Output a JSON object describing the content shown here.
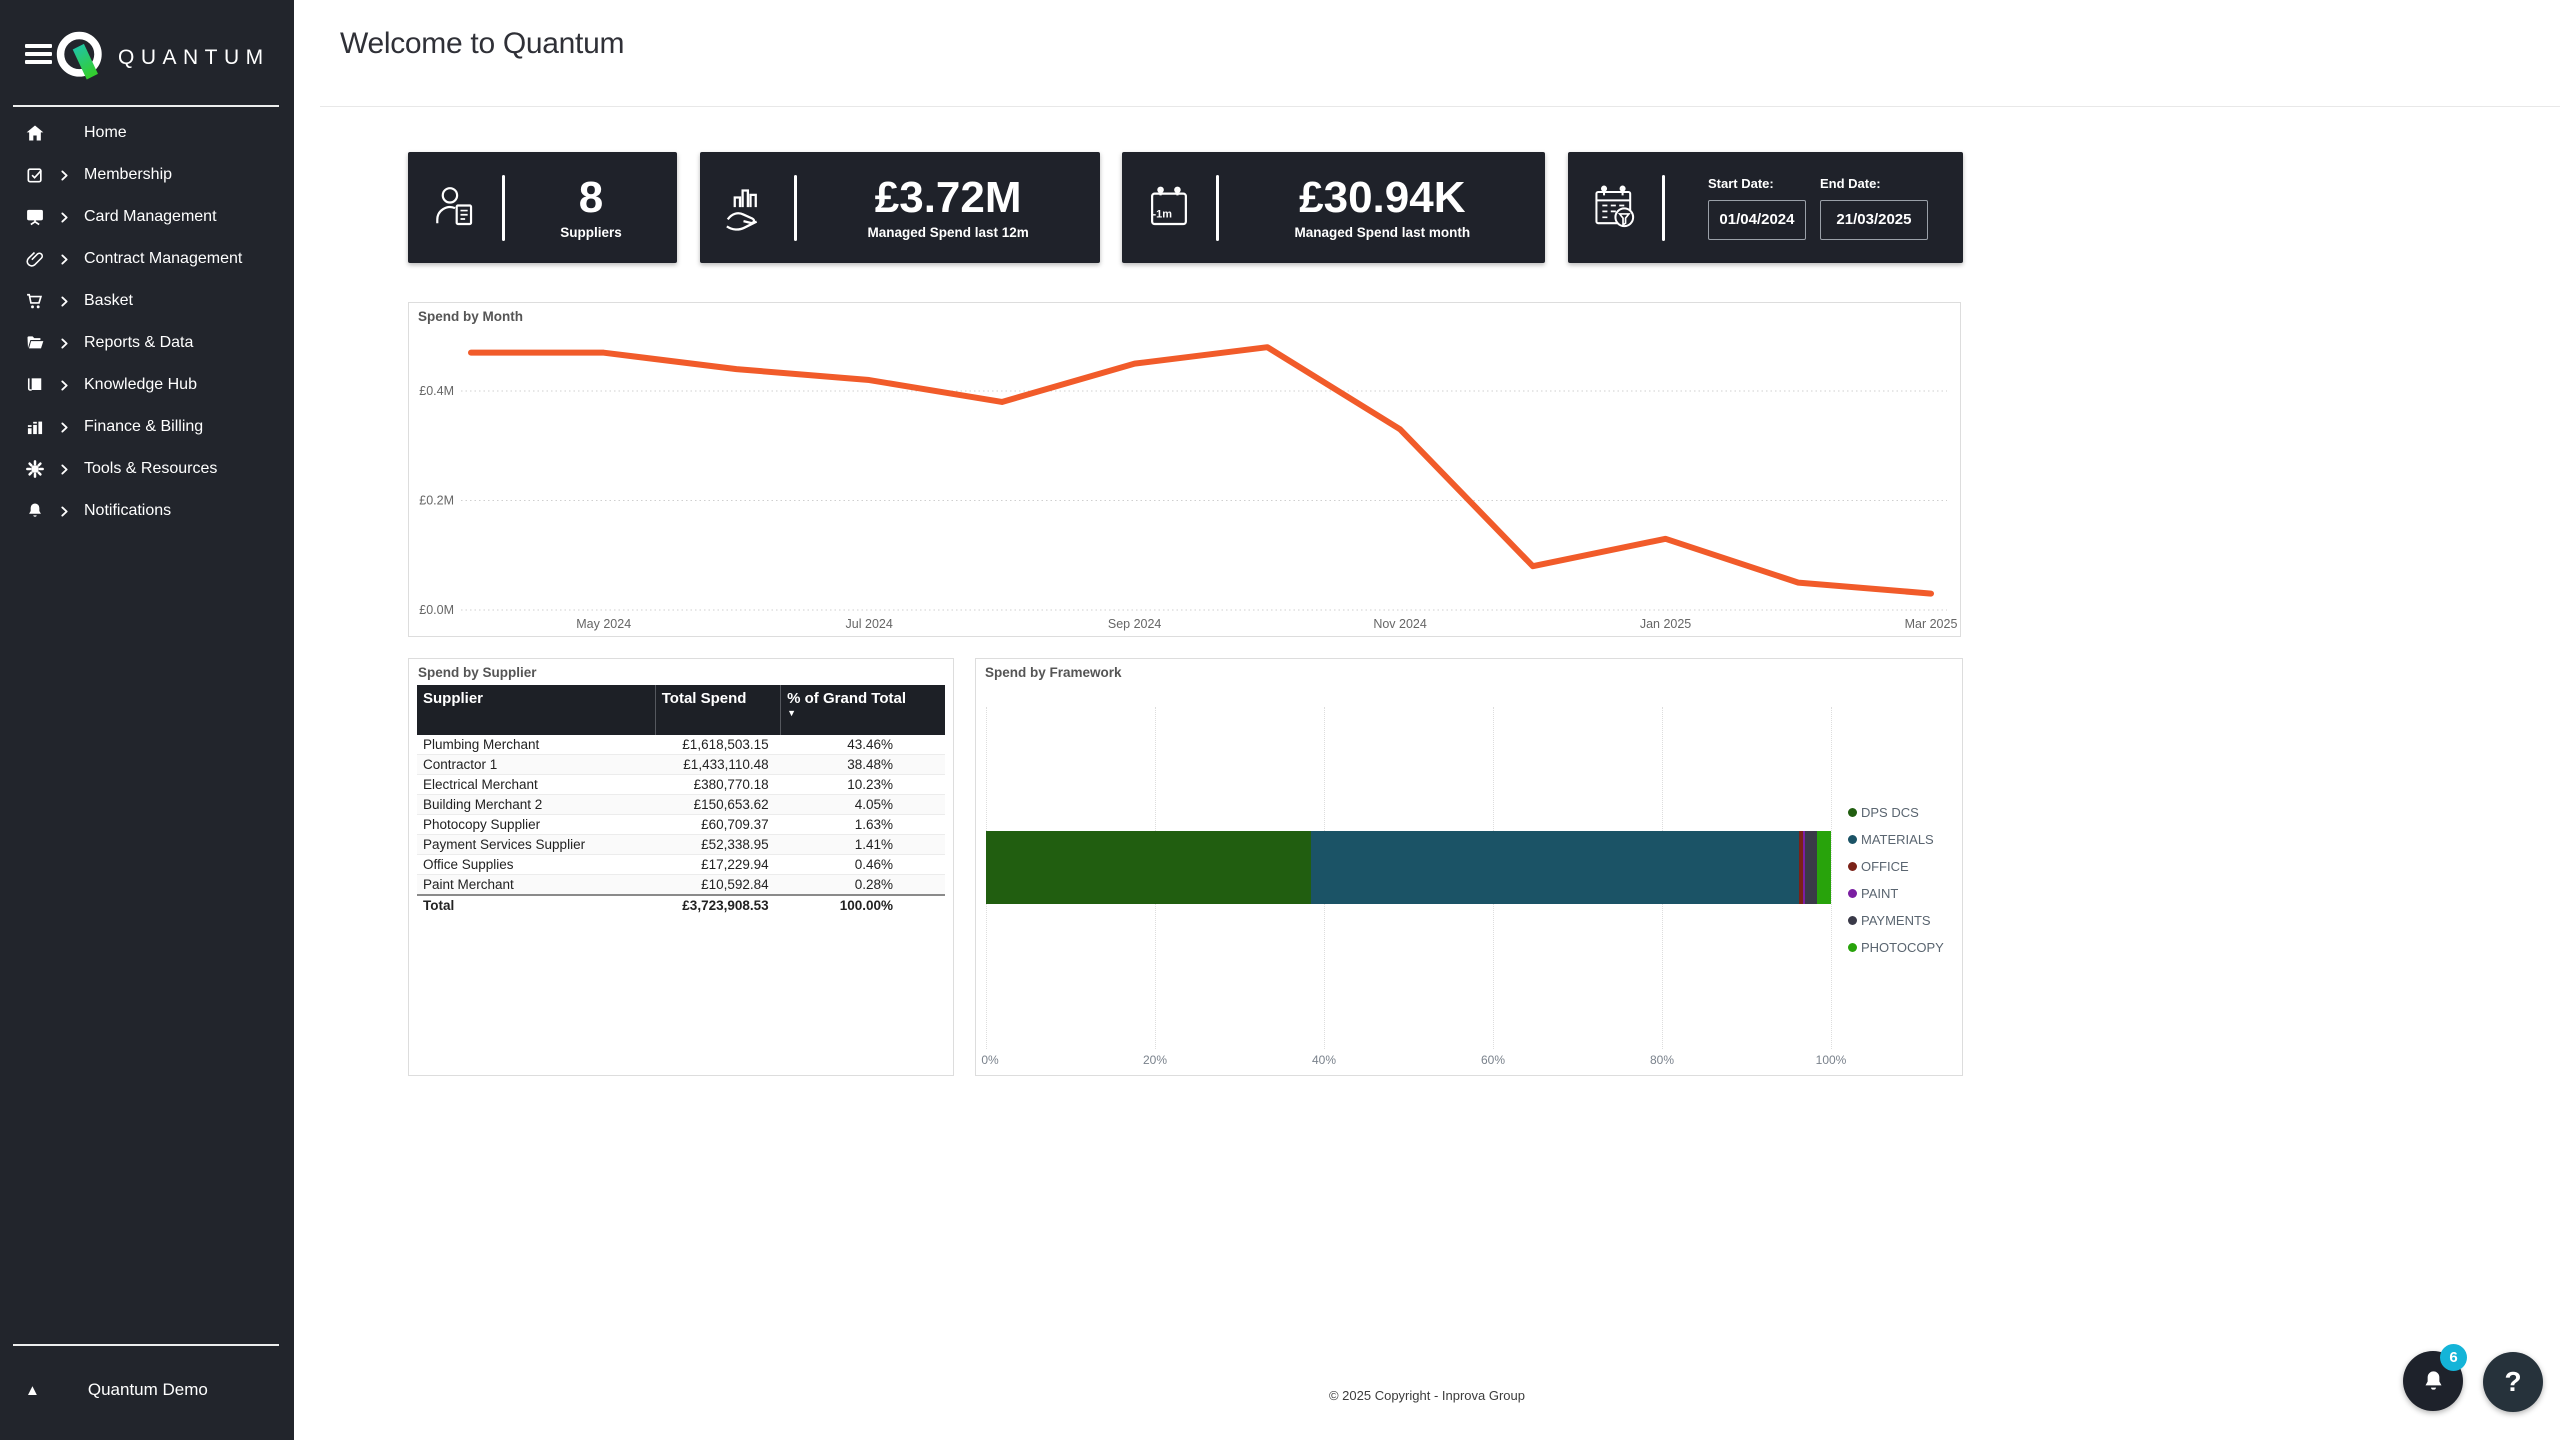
{
  "sidebar": {
    "brand": "QUANTUM",
    "items": [
      {
        "label": "Home",
        "icon": "home-icon",
        "expandable": false
      },
      {
        "label": "Membership",
        "icon": "membership-icon",
        "expandable": true
      },
      {
        "label": "Card Management",
        "icon": "card-management-icon",
        "expandable": true
      },
      {
        "label": "Contract Management",
        "icon": "contract-management-icon",
        "expandable": true
      },
      {
        "label": "Basket",
        "icon": "basket-icon",
        "expandable": true
      },
      {
        "label": "Reports & Data",
        "icon": "reports-data-icon",
        "expandable": true
      },
      {
        "label": "Knowledge Hub",
        "icon": "knowledge-hub-icon",
        "expandable": true
      },
      {
        "label": "Finance & Billing",
        "icon": "finance-billing-icon",
        "expandable": true
      },
      {
        "label": "Tools & Resources",
        "icon": "tools-resources-icon",
        "expandable": true
      },
      {
        "label": "Notifications",
        "icon": "notifications-icon",
        "expandable": true
      }
    ],
    "org": "Quantum Demo"
  },
  "header": {
    "title": "Welcome to Quantum"
  },
  "kpis": [
    {
      "value": "8",
      "label": "Suppliers",
      "icon": "supplier-person-icon"
    },
    {
      "value": "£3.72M",
      "label": "Managed Spend last 12m",
      "icon": "hand-chart-icon"
    },
    {
      "value": "£30.94K",
      "label": "Managed Spend last month",
      "icon": "calendar-last-month-icon"
    }
  ],
  "date_filter": {
    "start_label": "Start Date:",
    "end_label": "End Date:",
    "start_value": "01/04/2024",
    "end_value": "21/03/2025",
    "icon": "calendar-filter-icon"
  },
  "chart_data": [
    {
      "type": "line",
      "title": "Spend by Month",
      "x": [
        "Apr 2024",
        "May 2024",
        "Jun 2024",
        "Jul 2024",
        "Aug 2024",
        "Sep 2024",
        "Oct 2024",
        "Nov 2024",
        "Dec 2024",
        "Jan 2025",
        "Feb 2025",
        "Mar 2025"
      ],
      "values": [
        0.47,
        0.47,
        0.44,
        0.42,
        0.38,
        0.45,
        0.48,
        0.33,
        0.08,
        0.13,
        0.05,
        0.03
      ],
      "unit": "£M",
      "ylim": [
        0,
        0.53
      ],
      "y_ticks": [
        "£0.4M",
        "£0.2M",
        "£0.0M"
      ],
      "y_tick_values": [
        0.4,
        0.2,
        0.0
      ],
      "x_tick_indices": [
        1,
        3,
        5,
        7,
        9,
        11
      ],
      "x_tick_labels": [
        "May 2024",
        "Jul 2024",
        "Sep 2024",
        "Nov 2024",
        "Jan 2025",
        "Mar 2025"
      ],
      "line_color": "#F15B2A",
      "grid": "dotted-horizontal",
      "legend_position": "none"
    },
    {
      "type": "table",
      "title": "Spend by Supplier",
      "columns": [
        "Supplier",
        "Total Spend",
        "% of Grand Total"
      ],
      "sort_column": "% of Grand Total",
      "sort_direction": "desc",
      "rows": [
        [
          "Plumbing Merchant",
          "£1,618,503.15",
          "43.46%"
        ],
        [
          "Contractor 1",
          "£1,433,110.48",
          "38.48%"
        ],
        [
          "Electrical Merchant",
          "£380,770.18",
          "10.23%"
        ],
        [
          "Building Merchant 2",
          "£150,653.62",
          "4.05%"
        ],
        [
          "Photocopy Supplier",
          "£60,709.37",
          "1.63%"
        ],
        [
          "Payment Services Supplier",
          "£52,338.95",
          "1.41%"
        ],
        [
          "Office Supplies",
          "£17,229.94",
          "0.46%"
        ],
        [
          "Paint Merchant",
          "£10,592.84",
          "0.28%"
        ]
      ],
      "total_row": [
        "Total",
        "£3,723,908.53",
        "100.00%"
      ]
    },
    {
      "type": "bar",
      "subtype": "stacked-horizontal-100pct",
      "title": "Spend by Framework",
      "series": [
        {
          "name": "DPS DCS",
          "value": 38.48,
          "color": "#215E10"
        },
        {
          "name": "MATERIALS",
          "value": 57.74,
          "color": "#1B5366"
        },
        {
          "name": "OFFICE",
          "value": 0.46,
          "color": "#7B2218"
        },
        {
          "name": "PAINT",
          "value": 0.28,
          "color": "#7B1FA2"
        },
        {
          "name": "PAYMENTS",
          "value": 1.41,
          "color": "#3A3A48"
        },
        {
          "name": "PHOTOCOPY",
          "value": 1.63,
          "color": "#28A30B"
        }
      ],
      "xlim": [
        0,
        100
      ],
      "x_ticks": [
        "0%",
        "20%",
        "40%",
        "60%",
        "80%",
        "100%"
      ],
      "grid": "dotted-vertical",
      "legend_position": "right"
    }
  ],
  "footer": {
    "copyright": "© 2025 Copyright - Inprova Group"
  },
  "floating": {
    "notification_count": "6",
    "help_label": "?"
  },
  "colors": {
    "sidebar_bg": "#22252C",
    "card_bg": "#1F222A",
    "accent_orange": "#F15B2A",
    "badge_cyan": "#14B4D8",
    "logo_gradient_start": "#1EC3B4",
    "logo_gradient_end": "#33CE30"
  }
}
